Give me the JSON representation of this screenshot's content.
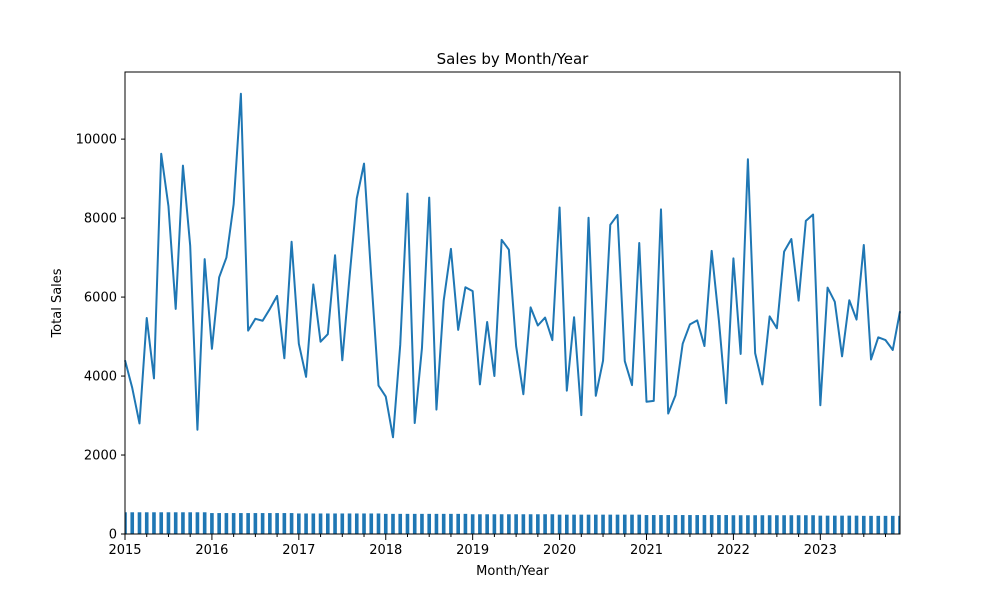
{
  "chart_data": {
    "type": "line",
    "title": "Sales by Month/Year",
    "xlabel": "Month/Year",
    "ylabel": "Total Sales",
    "ylim": [
      0,
      11700
    ],
    "y_ticks": [
      0,
      2000,
      4000,
      6000,
      8000,
      10000
    ],
    "x_ticks": [
      "2015",
      "2016",
      "2017",
      "2018",
      "2019",
      "2020",
      "2021",
      "2022",
      "2023"
    ],
    "x_start": "2015-01",
    "x_end": "2023-12",
    "grid": false,
    "color": "#1f77b4",
    "series": [
      {
        "type": "line",
        "values": [
          4400,
          3700,
          2800,
          5470,
          3940,
          9630,
          8300,
          5700,
          9330,
          7300,
          2640,
          6960,
          4690,
          6500,
          7000,
          8350,
          11150,
          5150,
          5450,
          5400,
          5700,
          6030,
          4450,
          7400,
          4820,
          3980,
          6320,
          4870,
          5060,
          7060,
          4400,
          6510,
          8500,
          9380,
          6500,
          3760,
          3480,
          2450,
          4790,
          8620,
          2810,
          4710,
          8520,
          3150,
          5910,
          7220,
          5170,
          6250,
          6150,
          3790,
          5370,
          4000,
          7450,
          7200,
          4760,
          3540,
          5740,
          5280,
          5480,
          4910,
          8270,
          3630,
          5490,
          3010,
          8010,
          3500,
          4390,
          7830,
          8080,
          4380,
          3770,
          7370,
          3350,
          3370,
          8220,
          3050,
          3510,
          4820,
          5310,
          5410,
          4760,
          7170,
          5400,
          3310,
          6980,
          4560,
          9490,
          4580,
          3790,
          5510,
          5210,
          7150,
          7470,
          5910,
          7930,
          8090,
          3260,
          6240,
          5880,
          4500,
          5920,
          5430,
          7320,
          4420,
          4980,
          4910,
          4660,
          5640
        ]
      },
      {
        "type": "bar",
        "values": [
          550,
          550,
          550,
          550,
          550,
          550,
          550,
          550,
          550,
          550,
          550,
          550,
          530,
          530,
          530,
          530,
          530,
          530,
          530,
          530,
          530,
          530,
          530,
          530,
          520,
          520,
          520,
          520,
          520,
          520,
          520,
          520,
          520,
          520,
          520,
          520,
          510,
          510,
          510,
          510,
          510,
          510,
          510,
          510,
          510,
          510,
          510,
          510,
          500,
          500,
          500,
          500,
          500,
          500,
          500,
          500,
          500,
          500,
          500,
          500,
          490,
          490,
          490,
          490,
          490,
          490,
          490,
          490,
          490,
          490,
          490,
          490,
          480,
          480,
          480,
          480,
          480,
          480,
          480,
          480,
          480,
          480,
          480,
          480,
          475,
          475,
          475,
          475,
          475,
          475,
          475,
          475,
          475,
          475,
          475,
          475,
          465,
          465,
          465,
          465,
          465,
          465,
          460,
          460,
          460,
          460,
          460,
          460
        ]
      }
    ]
  }
}
